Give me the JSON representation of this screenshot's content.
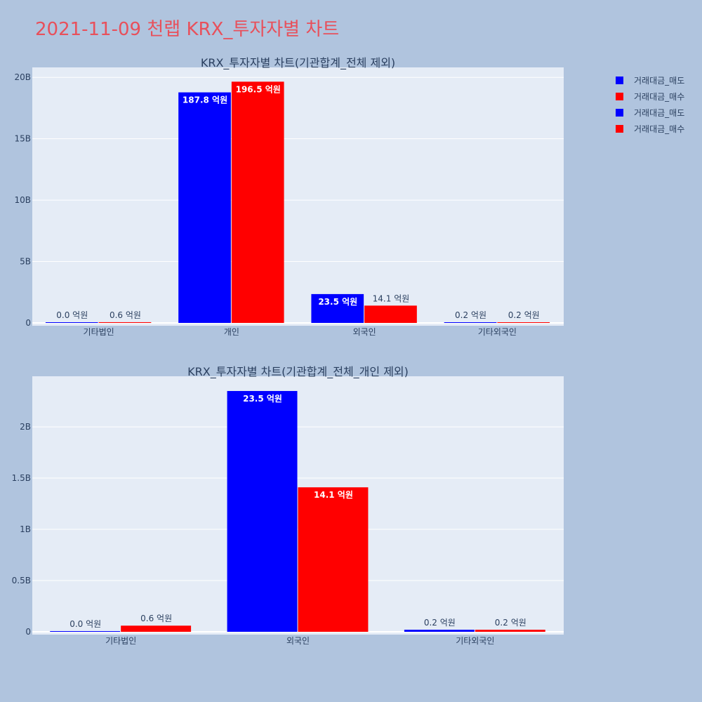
{
  "title": "2021-11-09 천랩 KRX_투자자별 차트",
  "colors": {
    "page_bg": "#b0c4de",
    "plot_bg": "#e5ecf6",
    "grid": "#ffffff",
    "sell": "#0000ff",
    "buy": "#ff0000",
    "title": "#e8505b",
    "text": "#2a3f5f"
  },
  "legend": [
    {
      "name": "거래대금_매도",
      "color": "#0000ff"
    },
    {
      "name": "거래대금_매수",
      "color": "#ff0000"
    },
    {
      "name": "거래대금_매도",
      "color": "#0000ff"
    },
    {
      "name": "거래대금_매수",
      "color": "#ff0000"
    }
  ],
  "chart_data": [
    {
      "type": "bar",
      "title": "KRX_투자자별 차트(기관합계_전체 제외)",
      "categories": [
        "기타법인",
        "개인",
        "외국인",
        "기타외국인"
      ],
      "yticks": [
        0,
        5,
        10,
        15,
        20
      ],
      "ytick_labels": [
        "0",
        "5B",
        "10B",
        "15B",
        "20B"
      ],
      "ylim": [
        0,
        20.7
      ],
      "grid": true,
      "legend_position": "top-right",
      "series": [
        {
          "name": "거래대금_매도",
          "color": "#0000ff",
          "values": [
            0.0,
            18.78,
            2.35,
            0.02
          ],
          "labels": [
            "0.0 억원",
            "187.8 억원",
            "23.5 억원",
            "0.2 억원"
          ]
        },
        {
          "name": "거래대금_매수",
          "color": "#ff0000",
          "values": [
            0.06,
            19.65,
            1.41,
            0.02
          ],
          "labels": [
            "0.6 억원",
            "196.5 억원",
            "14.1 억원",
            "0.2 억원"
          ]
        }
      ]
    },
    {
      "type": "bar",
      "title": "KRX_투자자별 차트(기관합계_전체_개인 제외)",
      "categories": [
        "기타법인",
        "외국인",
        "기타외국인"
      ],
      "yticks": [
        0,
        0.5,
        1,
        1.5,
        2
      ],
      "ytick_labels": [
        "0",
        "0.5B",
        "1B",
        "1.5B",
        "2B"
      ],
      "ylim": [
        0,
        2.48
      ],
      "grid": true,
      "series": [
        {
          "name": "거래대금_매도",
          "color": "#0000ff",
          "values": [
            0.003,
            2.35,
            0.02
          ],
          "labels": [
            "0.0 억원",
            "23.5 억원",
            "0.2 억원"
          ]
        },
        {
          "name": "거래대금_매수",
          "color": "#ff0000",
          "values": [
            0.06,
            1.41,
            0.02
          ],
          "labels": [
            "0.6 억원",
            "14.1 억원",
            "0.2 억원"
          ]
        }
      ]
    }
  ]
}
